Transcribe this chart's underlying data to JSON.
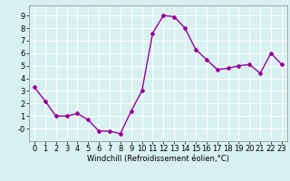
{
  "x": [
    0,
    1,
    2,
    3,
    4,
    5,
    6,
    7,
    8,
    9,
    10,
    11,
    12,
    13,
    14,
    15,
    16,
    17,
    18,
    19,
    20,
    21,
    22,
    23
  ],
  "y": [
    3.3,
    2.2,
    1.0,
    1.0,
    1.2,
    0.7,
    -0.2,
    -0.2,
    -0.4,
    1.4,
    3.0,
    7.6,
    9.0,
    8.9,
    8.0,
    6.3,
    5.5,
    4.7,
    4.8,
    5.0,
    5.1,
    4.4,
    6.0,
    5.1
  ],
  "line_color": "#990099",
  "marker": "D",
  "marker_size": 2.0,
  "line_width": 1.0,
  "xlabel": "Windchill (Refroidissement éolien,°C)",
  "xlabel_fontsize": 6.0,
  "bg_color": "#d8f0f0",
  "grid_color": "#ffffff",
  "tick_fontsize": 6.0,
  "xlim": [
    -0.5,
    23.5
  ],
  "ylim": [
    -1.0,
    9.8
  ],
  "yticks": [
    0,
    1,
    2,
    3,
    4,
    5,
    6,
    7,
    8,
    9
  ],
  "ytick_labels": [
    "-0",
    "1",
    "2",
    "3",
    "4",
    "5",
    "6",
    "7",
    "8",
    "9"
  ],
  "xticks": [
    0,
    1,
    2,
    3,
    4,
    5,
    6,
    7,
    8,
    9,
    10,
    11,
    12,
    13,
    14,
    15,
    16,
    17,
    18,
    19,
    20,
    21,
    22,
    23
  ]
}
